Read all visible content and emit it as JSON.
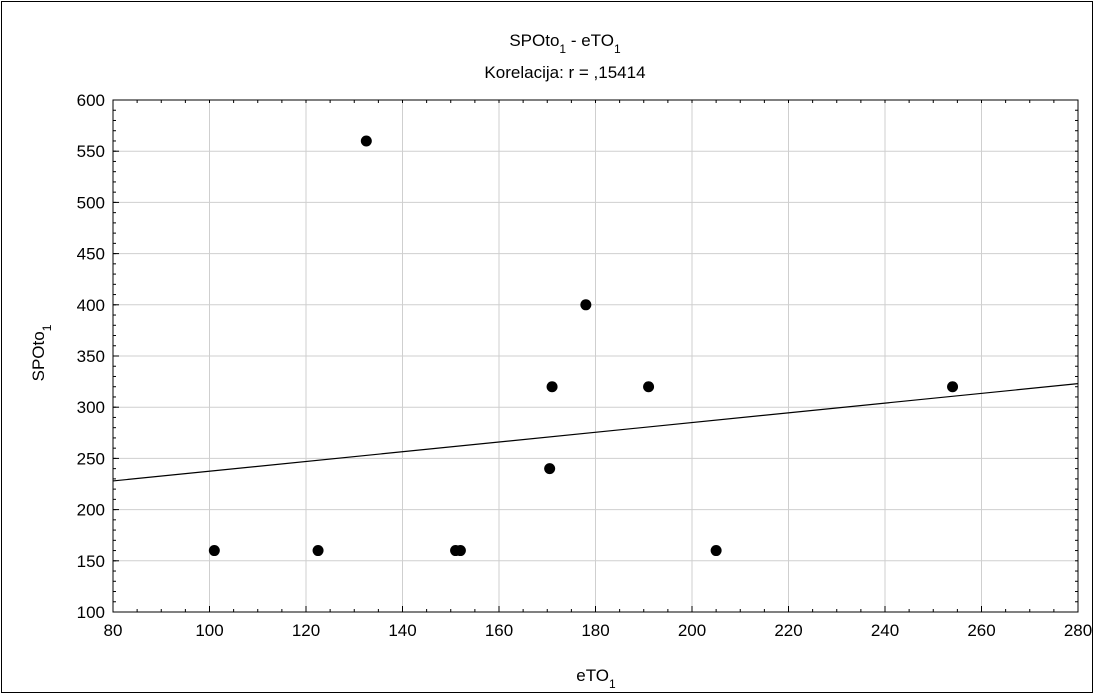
{
  "chart_data": {
    "type": "scatter",
    "title": {
      "main": "SPOto",
      "sub": "1",
      "sep": " - ",
      "main2": "eTO",
      "sub2": "1"
    },
    "subtitle": "Korelacija: r = ,15414",
    "xlabel": {
      "main": "eTO",
      "sub": "1"
    },
    "ylabel": {
      "main": "SPOto",
      "sub": "1"
    },
    "xlim": [
      80,
      280
    ],
    "ylim": [
      100,
      600
    ],
    "xticks": [
      80,
      100,
      120,
      140,
      160,
      180,
      200,
      220,
      240,
      260,
      280
    ],
    "yticks": [
      100,
      150,
      200,
      250,
      300,
      350,
      400,
      450,
      500,
      550,
      600
    ],
    "grid": true,
    "points": [
      {
        "x": 101,
        "y": 160
      },
      {
        "x": 122.5,
        "y": 160
      },
      {
        "x": 132.5,
        "y": 560
      },
      {
        "x": 151,
        "y": 160
      },
      {
        "x": 152,
        "y": 160
      },
      {
        "x": 170.5,
        "y": 240
      },
      {
        "x": 171,
        "y": 320
      },
      {
        "x": 178,
        "y": 400
      },
      {
        "x": 191,
        "y": 320
      },
      {
        "x": 205,
        "y": 160
      },
      {
        "x": 254,
        "y": 320
      }
    ],
    "fit_line": {
      "x": [
        80,
        280
      ],
      "y": [
        228,
        323
      ]
    },
    "marker_color": "#000000",
    "line_color": "#000000"
  }
}
